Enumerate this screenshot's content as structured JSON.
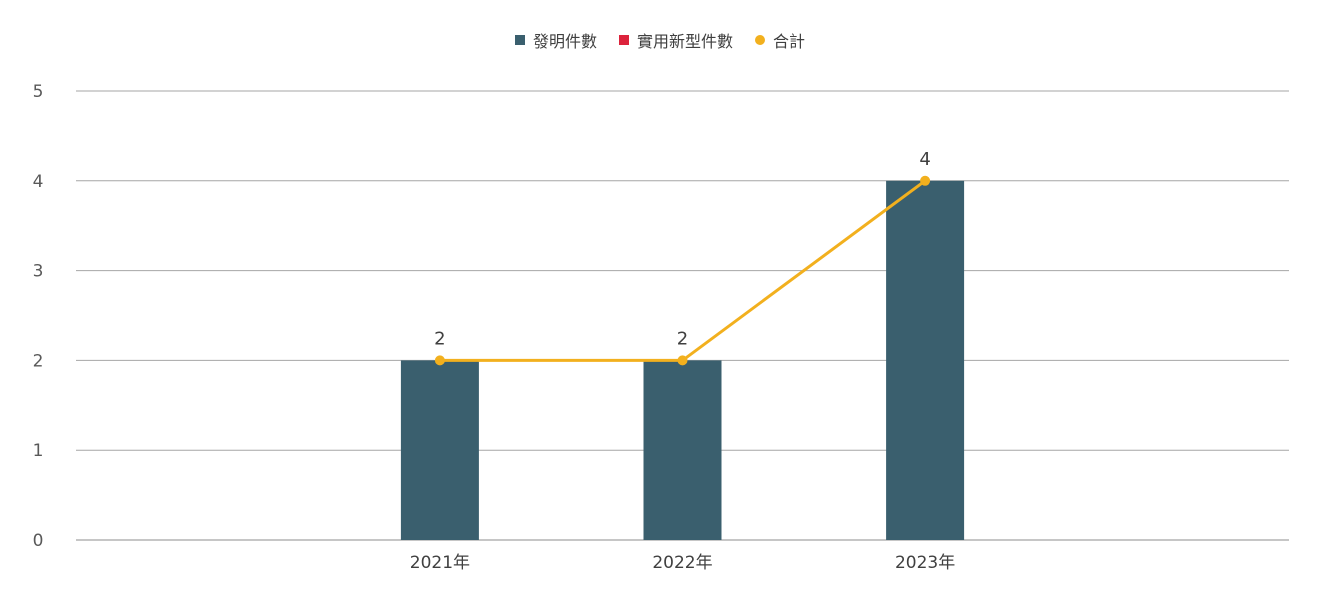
{
  "chart_data": {
    "type": "bar",
    "categories": [
      "2021年",
      "2022年",
      "2023年"
    ],
    "series": [
      {
        "name": "發明件數",
        "type": "bar",
        "color": "#3a5f6e",
        "values": [
          2,
          2,
          4
        ]
      },
      {
        "name": "實用新型件數",
        "type": "bar",
        "color": "#dc233c",
        "values": [
          0,
          0,
          0
        ]
      },
      {
        "name": "合計",
        "type": "line",
        "color": "#f2b01e",
        "values": [
          2,
          2,
          4
        ]
      }
    ],
    "data_labels": [
      "2",
      "2",
      "4"
    ],
    "yticks": [
      "0",
      "1",
      "2",
      "3",
      "4",
      "5"
    ],
    "ylim": [
      0,
      5
    ],
    "grid": true,
    "legend_position": "top-center"
  }
}
